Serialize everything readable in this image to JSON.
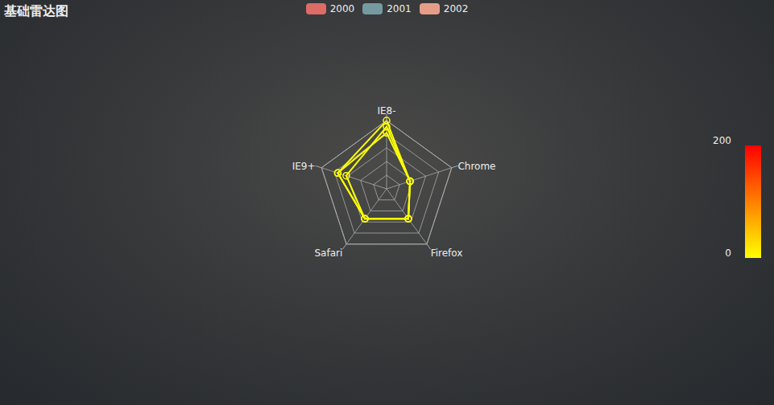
{
  "chart_data": {
    "type": "radar",
    "title": "基础雷达图",
    "categories": [
      "IE8-",
      "Chrome",
      "Firefox",
      "Safari",
      "IE9+"
    ],
    "rlim": [
      0,
      100
    ],
    "rticks": [
      0,
      20,
      40,
      60,
      80,
      100
    ],
    "tick_labels": false,
    "grid": true,
    "legend": "top",
    "series": [
      {
        "name": "2000",
        "color": "#dd6b66",
        "values": [
          100,
          36,
          54,
          54,
          75
        ]
      },
      {
        "name": "2001",
        "color": "#759aa0",
        "values": [
          91,
          36,
          54,
          54,
          62
        ]
      },
      {
        "name": "2002",
        "color": "#e69d87",
        "values": [
          82,
          36,
          54,
          54,
          75
        ]
      }
    ],
    "color_bar": {
      "range": [
        0,
        200
      ],
      "ticks": [
        0,
        200
      ],
      "colors": [
        "#ffff00",
        "#ff0000"
      ]
    }
  }
}
